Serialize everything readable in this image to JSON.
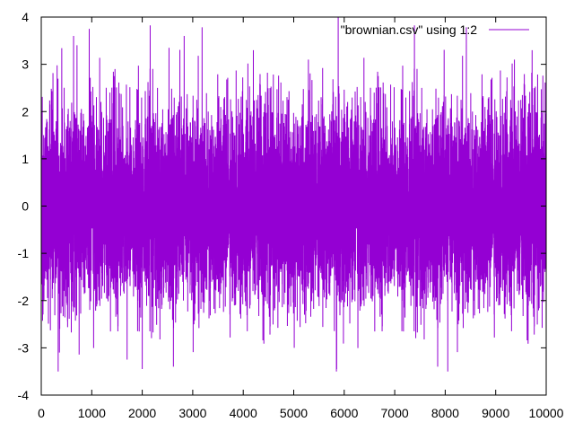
{
  "chart_data": {
    "type": "line",
    "title": "",
    "xlabel": "",
    "ylabel": "",
    "xlim": [
      0,
      10000
    ],
    "ylim": [
      -4,
      4
    ],
    "x_ticks": [
      0,
      1000,
      2000,
      3000,
      4000,
      5000,
      6000,
      7000,
      8000,
      9000,
      10000
    ],
    "y_ticks": [
      -4,
      -3,
      -2,
      -1,
      0,
      1,
      2,
      3,
      4
    ],
    "x_tick_labels": [
      "0",
      "1000",
      "2000",
      "3000",
      "4000",
      "5000",
      "6000",
      "7000",
      "8000",
      "9000",
      "10000"
    ],
    "y_tick_labels": [
      "-4",
      "-3",
      "-2",
      "-1",
      "0",
      "1",
      "2",
      "3",
      "4"
    ],
    "grid": false,
    "legend_position": "top-right",
    "series": [
      {
        "name": "\"brownian.csv\" using 1:2",
        "color": "#9400d3",
        "n_points": 10000,
        "distribution": "standard normal noise, mean 0, sd 1",
        "x_range": [
          0,
          10000
        ],
        "y_range_observed": [
          -3.5,
          4.0
        ],
        "notable_peaks": [
          {
            "x": 640,
            "y": 3.6
          },
          {
            "x": 950,
            "y": 3.75
          },
          {
            "x": 1460,
            "y": 2.9
          },
          {
            "x": 2530,
            "y": 3.35
          },
          {
            "x": 2830,
            "y": 3.6
          },
          {
            "x": 4200,
            "y": 3.3
          },
          {
            "x": 5290,
            "y": 3.1
          },
          {
            "x": 5880,
            "y": 4.0
          },
          {
            "x": 9370,
            "y": 3.1
          },
          {
            "x": 9720,
            "y": 3.3
          }
        ],
        "notable_troughs": [
          {
            "x": 360,
            "y": -3.1
          },
          {
            "x": 1700,
            "y": -3.25
          },
          {
            "x": 2000,
            "y": -3.45
          },
          {
            "x": 5010,
            "y": -3.0
          },
          {
            "x": 5850,
            "y": -3.45
          },
          {
            "x": 8050,
            "y": -3.5
          },
          {
            "x": 9640,
            "y": -2.9
          }
        ]
      }
    ]
  }
}
